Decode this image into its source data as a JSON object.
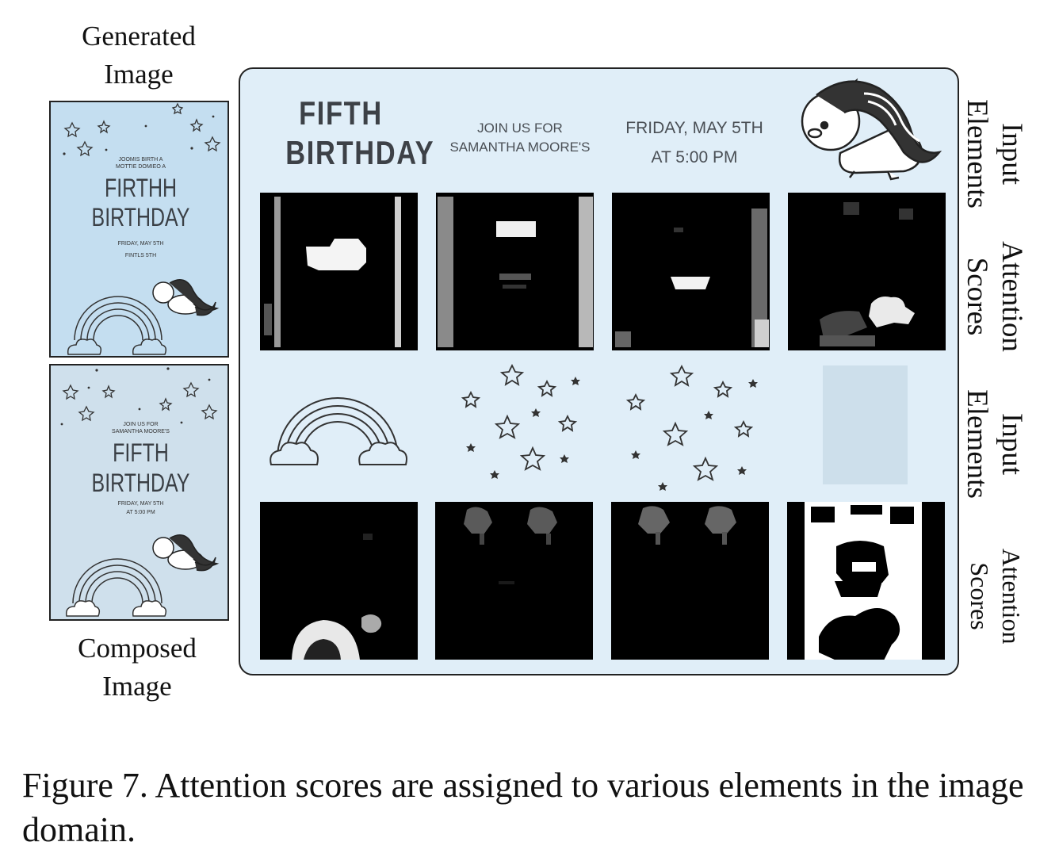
{
  "labels": {
    "generated": "Generated\nImage",
    "composed": "Composed\nImage",
    "row1": "Input\nElements",
    "row2": "Attention\nScores",
    "row3": "Input\nElements",
    "row4": "Attention\nScores"
  },
  "generated_image": {
    "top_text": "JOOMIS BIRTH A\nMOTTIE DOMIEO A",
    "title1": "FIRTHH",
    "title2": "BIRTHDAY",
    "small1": "FRIDAY, MAY 5TH",
    "small2": "FINTLS 5TH"
  },
  "composed_image": {
    "top_text1": "JOIN US FOR",
    "top_text2": "SAMANTHA MOORE'S",
    "title1": "FIFTH",
    "title2": "BIRTHDAY",
    "small1": "FRIDAY, MAY 5TH",
    "small2": "AT 5:00 PM"
  },
  "input_elements_row1": {
    "fifth_line1": "FIFTH",
    "fifth_line2": "BIRTHDAY",
    "join_line1": "JOIN US FOR",
    "join_line2": "SAMANTHA MOORE'S",
    "friday_line1": "FRIDAY, MAY 5TH",
    "friday_line2": "AT 5:00 PM",
    "icon": "unicorn-icon"
  },
  "input_elements_row2": {
    "icons": [
      "rainbow-icon",
      "stars-icon",
      "stars-icon",
      "blank-tile"
    ]
  },
  "caption": "Figure 7. Attention scores are assigned to various elements in the image domain."
}
